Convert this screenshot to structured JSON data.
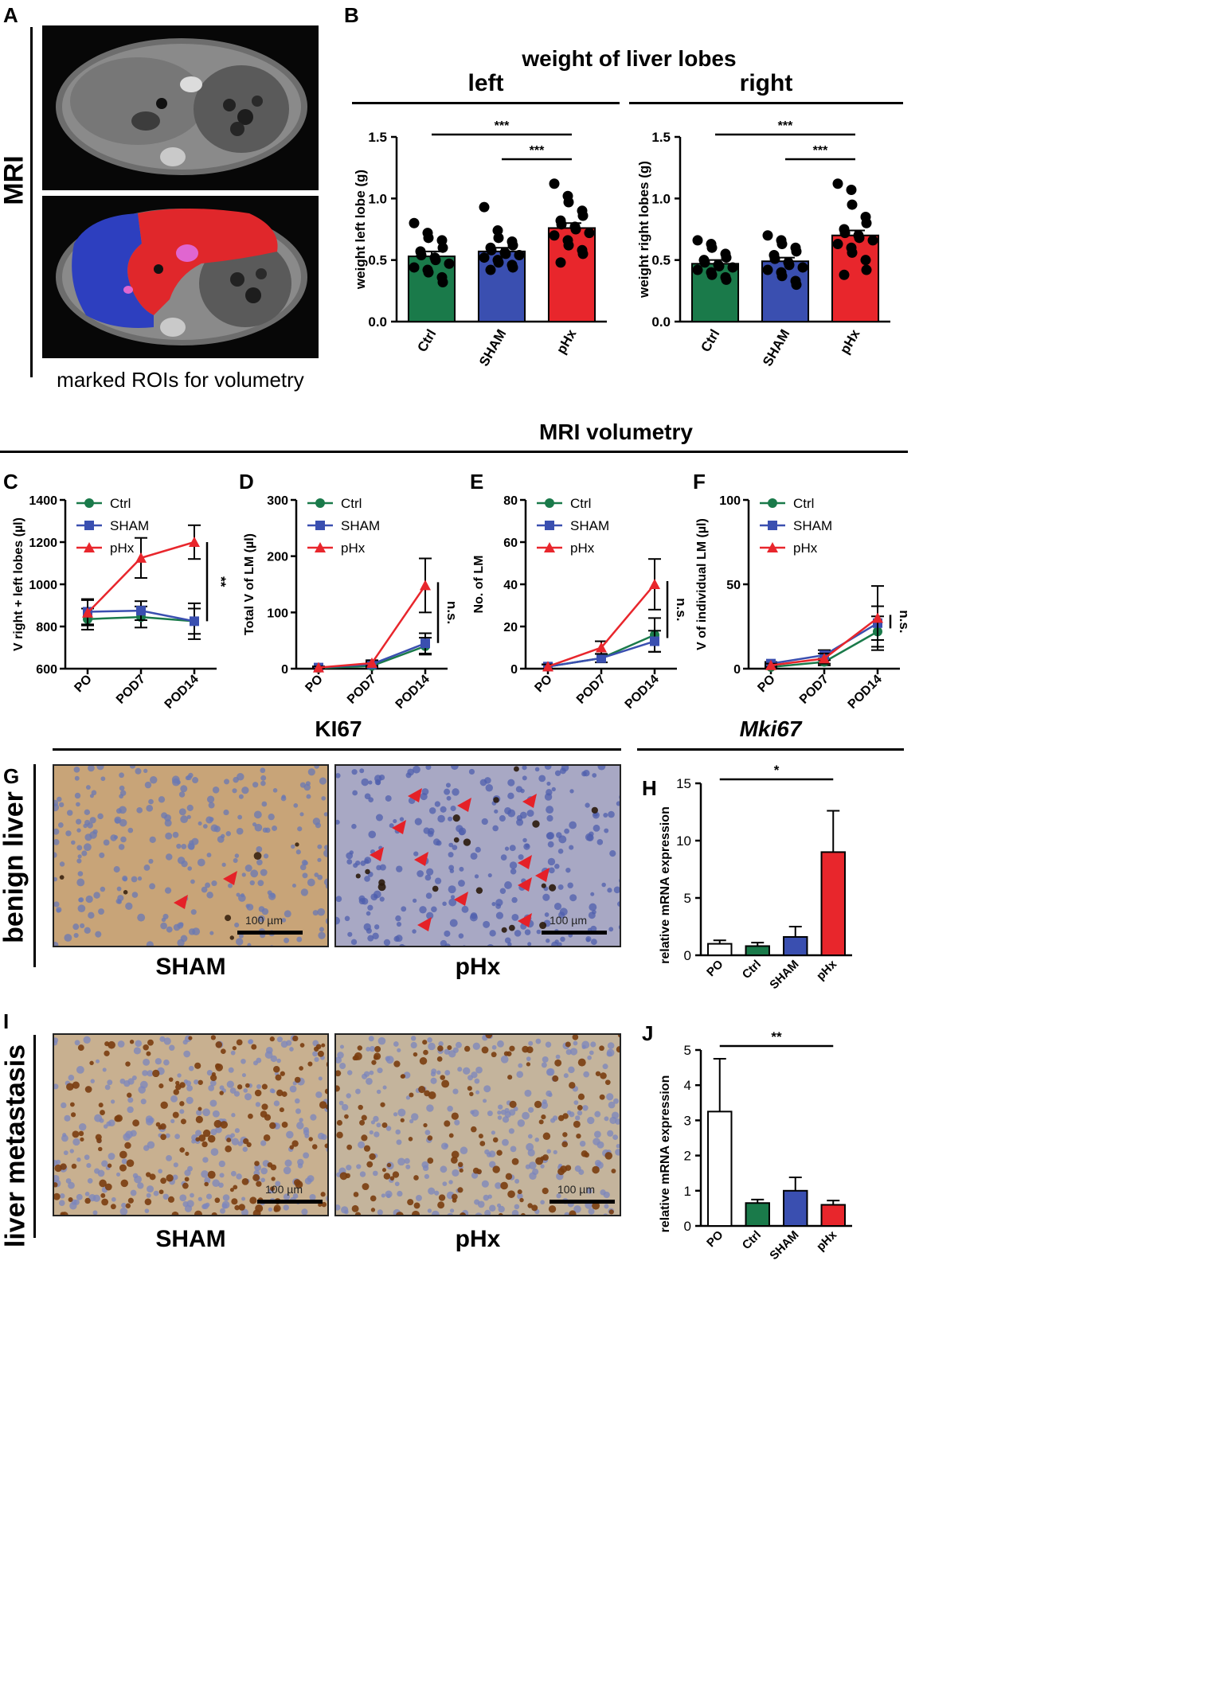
{
  "labels": {
    "A": "A",
    "B": "B",
    "C": "C",
    "D": "D",
    "E": "E",
    "F": "F",
    "G": "G",
    "H": "H",
    "I": "I",
    "J": "J"
  },
  "panelA": {
    "side_label": "MRI",
    "caption": "marked ROIs for volumetry",
    "roi_colors": {
      "left": "#2d3fbf",
      "right": "#e0272b",
      "lm": "#e066d0"
    }
  },
  "panelB": {
    "title": "weight of liver lobes",
    "left_header": "left",
    "right_header": "right"
  },
  "section_cf": {
    "title": "MRI volumetry"
  },
  "section_g": {
    "ki67_title": "KI67",
    "mki67_title": "Mki67",
    "side_label": "benign liver",
    "caption_left": "SHAM",
    "caption_right": "pHx",
    "scalebar_left": "100 µm",
    "scalebar_right": "100 µm"
  },
  "section_i": {
    "side_label": "liver metastasis",
    "caption_left": "SHAM",
    "caption_right": "pHx",
    "scalebar_left": "100 µm",
    "scalebar_right": "100 µm"
  },
  "colors": {
    "ctrl": "#1a7a4a",
    "sham": "#3a4fb0",
    "phx": "#e8262c"
  },
  "chart_data": [
    {
      "id": "B-left",
      "type": "bar",
      "categories": [
        "Ctrl",
        "SHAM",
        "pHx"
      ],
      "values": [
        0.53,
        0.57,
        0.76
      ],
      "errors": [
        0.04,
        0.03,
        0.04
      ],
      "ylabel": "weight left lobe (g)",
      "ylim": [
        0,
        1.5
      ],
      "yticks": [
        "0.0",
        "0.5",
        "1.0",
        "1.5"
      ],
      "points": [
        [
          0.8,
          0.72,
          0.68,
          0.66,
          0.6,
          0.57,
          0.54,
          0.52,
          0.5,
          0.47,
          0.44,
          0.42,
          0.4,
          0.36,
          0.32
        ],
        [
          0.93,
          0.74,
          0.68,
          0.65,
          0.62,
          0.6,
          0.58,
          0.56,
          0.55,
          0.54,
          0.52,
          0.5,
          0.48,
          0.46,
          0.44,
          0.42
        ],
        [
          1.12,
          1.02,
          0.97,
          0.9,
          0.86,
          0.82,
          0.79,
          0.77,
          0.75,
          0.72,
          0.7,
          0.66,
          0.62,
          0.58,
          0.55,
          0.48
        ]
      ],
      "significance": [
        "***",
        "***"
      ]
    },
    {
      "id": "B-right",
      "type": "bar",
      "categories": [
        "Ctrl",
        "SHAM",
        "pHx"
      ],
      "values": [
        0.47,
        0.49,
        0.7
      ],
      "errors": [
        0.03,
        0.03,
        0.04
      ],
      "ylabel": "weight right lobes (g)",
      "ylim": [
        0,
        1.5
      ],
      "yticks": [
        "0.0",
        "0.5",
        "1.0",
        "1.5"
      ],
      "points": [
        [
          0.66,
          0.63,
          0.6,
          0.55,
          0.52,
          0.5,
          0.48,
          0.46,
          0.45,
          0.44,
          0.42,
          0.4,
          0.38,
          0.36,
          0.34
        ],
        [
          0.7,
          0.66,
          0.63,
          0.6,
          0.57,
          0.54,
          0.51,
          0.48,
          0.46,
          0.44,
          0.42,
          0.4,
          0.37,
          0.33,
          0.3
        ],
        [
          1.12,
          1.07,
          0.95,
          0.85,
          0.8,
          0.75,
          0.72,
          0.7,
          0.68,
          0.66,
          0.63,
          0.6,
          0.56,
          0.5,
          0.42,
          0.38
        ]
      ],
      "significance": [
        "***",
        "***"
      ]
    },
    {
      "id": "C",
      "type": "line",
      "x": [
        "PO",
        "POD7",
        "POD14"
      ],
      "ylabel": "V right + left lobes (µl)",
      "ylim": [
        600,
        1400
      ],
      "yticks": [
        "600",
        "800",
        "1000",
        "1200",
        "1400"
      ],
      "series": [
        {
          "name": "Ctrl",
          "values": [
            835,
            845,
            825
          ],
          "errors": [
            50,
            50,
            60
          ]
        },
        {
          "name": "SHAM",
          "values": [
            870,
            875,
            825
          ],
          "errors": [
            60,
            45,
            85
          ]
        },
        {
          "name": "pHx",
          "values": [
            865,
            1125,
            1200
          ],
          "errors": [
            60,
            95,
            80
          ]
        }
      ],
      "significance": "**"
    },
    {
      "id": "D",
      "type": "line",
      "x": [
        "PO",
        "POD7",
        "POD14"
      ],
      "ylabel": "Total V of LM (µl)",
      "ylim": [
        0,
        300
      ],
      "yticks": [
        "0",
        "100",
        "200",
        "300"
      ],
      "series": [
        {
          "name": "Ctrl",
          "values": [
            1,
            5,
            40
          ],
          "errors": [
            1,
            3,
            15
          ]
        },
        {
          "name": "SHAM",
          "values": [
            2,
            8,
            45
          ],
          "errors": [
            2,
            4,
            18
          ]
        },
        {
          "name": "pHx",
          "values": [
            2,
            10,
            148
          ],
          "errors": [
            2,
            5,
            48
          ]
        }
      ],
      "significance": "n.s."
    },
    {
      "id": "E",
      "type": "line",
      "x": [
        "PO",
        "POD7",
        "POD14"
      ],
      "ylabel": "No. of LM",
      "ylim": [
        0,
        80
      ],
      "yticks": [
        "0",
        "20",
        "40",
        "60",
        "80"
      ],
      "series": [
        {
          "name": "Ctrl",
          "values": [
            1,
            5,
            16
          ],
          "errors": [
            1,
            2,
            8
          ]
        },
        {
          "name": "SHAM",
          "values": [
            1,
            5,
            13
          ],
          "errors": [
            1,
            2,
            5
          ]
        },
        {
          "name": "pHx",
          "values": [
            1,
            10,
            40
          ],
          "errors": [
            1,
            3,
            12
          ]
        }
      ],
      "significance": "n.s."
    },
    {
      "id": "F",
      "type": "line",
      "x": [
        "PO",
        "POD7",
        "POD14"
      ],
      "ylabel": "V of individual LM (µl)",
      "ylim": [
        0,
        100
      ],
      "yticks": [
        "0",
        "50",
        "100"
      ],
      "series": [
        {
          "name": "Ctrl",
          "values": [
            1,
            4,
            22
          ],
          "errors": [
            1,
            2,
            9
          ]
        },
        {
          "name": "SHAM",
          "values": [
            3,
            8,
            27
          ],
          "errors": [
            1,
            3,
            10
          ]
        },
        {
          "name": "pHx",
          "values": [
            2,
            6,
            30
          ],
          "errors": [
            1,
            3,
            19
          ]
        }
      ],
      "significance": "n.s."
    },
    {
      "id": "H",
      "type": "bar",
      "categories": [
        "PO",
        "Ctrl",
        "SHAM",
        "pHx"
      ],
      "values": [
        1.0,
        0.8,
        1.6,
        9.0
      ],
      "errors": [
        0.3,
        0.3,
        0.9,
        3.6
      ],
      "ylabel": "relative mRNA expression",
      "ylim": [
        0,
        15
      ],
      "yticks": [
        "0",
        "5",
        "10",
        "15"
      ],
      "significance": "*"
    },
    {
      "id": "J",
      "type": "bar",
      "categories": [
        "PO",
        "Ctrl",
        "SHAM",
        "pHx"
      ],
      "values": [
        3.25,
        0.65,
        1.0,
        0.6
      ],
      "errors": [
        1.5,
        0.1,
        0.38,
        0.12
      ],
      "ylabel": "relative mRNA expression",
      "ylim": [
        0,
        5
      ],
      "yticks": [
        "0",
        "1",
        "2",
        "3",
        "4",
        "5"
      ],
      "significance": "**"
    }
  ]
}
